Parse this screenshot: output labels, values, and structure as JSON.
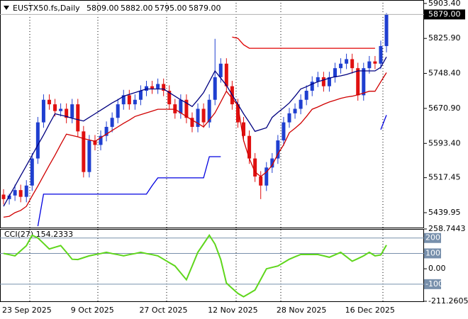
{
  "header": {
    "symbol": "EUSTX50.fs,Daily",
    "ohlc": [
      "5809.00",
      "5882.00",
      "5795.00",
      "5879.00"
    ]
  },
  "chart_data": [
    {
      "type": "candlestick",
      "categories": [
        "23 Sep 2025",
        null,
        null,
        null,
        null,
        null,
        null,
        null,
        null,
        null,
        null,
        null,
        "9 Oct 2025",
        null,
        null,
        null,
        null,
        null,
        null,
        null,
        null,
        null,
        null,
        null,
        "27 Oct 2025",
        null,
        null,
        null,
        null,
        null,
        null,
        null,
        null,
        null,
        null,
        null,
        "12 Nov 2025",
        null,
        null,
        null,
        null,
        null,
        null,
        null,
        null,
        null,
        null,
        null,
        "28 Nov 2025",
        null,
        null,
        null,
        null,
        null,
        null,
        null,
        null,
        null,
        null,
        null,
        "16 Dec 2025",
        null,
        null,
        null,
        null,
        null,
        null,
        null
      ],
      "open": [
        5480,
        5470,
        5478,
        5490,
        5475,
        5500,
        5560,
        5640,
        5690,
        5680,
        5665,
        5670,
        5650,
        5680,
        5620,
        5530,
        5600,
        5590,
        5610,
        5630,
        5650,
        5680,
        5700,
        5680,
        5690,
        5710,
        5720,
        5715,
        5725,
        5710,
        5680,
        5660,
        5690,
        5650,
        5630,
        5670,
        5640,
        5690,
        5740,
        5770,
        5720,
        5680,
        5640,
        5610,
        5560,
        5520,
        5500,
        5540,
        5560,
        5600,
        5640,
        5660,
        5670,
        5690,
        5710,
        5730,
        5740,
        5720,
        5740,
        5760,
        5770,
        5780,
        5760,
        5700,
        5760,
        5775,
        5770,
        5809
      ],
      "high": [
        5492,
        5482,
        5502,
        5502,
        5512,
        5572,
        5652,
        5702,
        5702,
        5692,
        5682,
        5682,
        5692,
        5692,
        5632,
        5612,
        5612,
        5622,
        5642,
        5662,
        5692,
        5712,
        5712,
        5702,
        5722,
        5732,
        5732,
        5737,
        5737,
        5722,
        5692,
        5702,
        5702,
        5662,
        5682,
        5682,
        5702,
        5825,
        5782,
        5782,
        5732,
        5692,
        5652,
        5622,
        5572,
        5532,
        5552,
        5572,
        5612,
        5652,
        5672,
        5682,
        5702,
        5722,
        5742,
        5752,
        5752,
        5752,
        5772,
        5782,
        5792,
        5792,
        5772,
        5772,
        5787,
        5787,
        5821,
        5882
      ],
      "low": [
        5458,
        5458,
        5466,
        5463,
        5463,
        5488,
        5548,
        5628,
        5668,
        5653,
        5653,
        5638,
        5638,
        5608,
        5518,
        5518,
        5578,
        5578,
        5598,
        5618,
        5638,
        5668,
        5668,
        5668,
        5678,
        5698,
        5703,
        5703,
        5698,
        5668,
        5648,
        5648,
        5638,
        5618,
        5618,
        5628,
        5628,
        5678,
        5728,
        5708,
        5668,
        5628,
        5598,
        5548,
        5508,
        5470,
        5488,
        5528,
        5548,
        5588,
        5628,
        5648,
        5658,
        5678,
        5698,
        5718,
        5708,
        5708,
        5728,
        5748,
        5758,
        5748,
        5688,
        5688,
        5748,
        5758,
        5758,
        5795
      ],
      "close": [
        5470,
        5478,
        5490,
        5475,
        5500,
        5560,
        5640,
        5690,
        5680,
        5665,
        5670,
        5650,
        5680,
        5620,
        5530,
        5600,
        5590,
        5610,
        5630,
        5650,
        5680,
        5700,
        5680,
        5690,
        5710,
        5720,
        5715,
        5725,
        5710,
        5680,
        5660,
        5690,
        5650,
        5630,
        5670,
        5640,
        5690,
        5740,
        5770,
        5720,
        5680,
        5640,
        5610,
        5560,
        5520,
        5500,
        5540,
        5560,
        5600,
        5640,
        5660,
        5670,
        5690,
        5710,
        5730,
        5740,
        5720,
        5740,
        5760,
        5770,
        5780,
        5760,
        5700,
        5760,
        5775,
        5770,
        5809,
        5879
      ],
      "up_color": "#1f3fd0",
      "down_color": "#e01010",
      "last_price_label": "5879.00",
      "series": [
        {
          "color": "#000080",
          "values": [
            5454,
            5477,
            5499,
            5522,
            5544,
            5567,
            5590,
            5612,
            5636,
            5659,
            5656,
            5653,
            5649,
            5646,
            5643,
            5651,
            5659,
            5667,
            5675,
            5683,
            5690,
            5698,
            5702,
            5706,
            5710,
            5714,
            5714,
            5714,
            5714,
            5706,
            5698,
            5690,
            5683,
            5675,
            5690,
            5706,
            5730,
            5754,
            5738,
            5722,
            5701,
            5680,
            5659,
            5640,
            5620,
            5624,
            5628,
            5651,
            5662,
            5672,
            5683,
            5698,
            5714,
            5719,
            5725,
            5730,
            5734,
            5738,
            5741,
            5743,
            5746,
            5750,
            5754,
            5754,
            5754,
            5754,
            5762,
            5785
          ]
        },
        {
          "color": "#d00000",
          "values": [
            5430,
            5432,
            5440,
            5445,
            5454,
            5477,
            5499,
            5522,
            5545,
            5567,
            5591,
            5614,
            5611,
            5608,
            5604,
            5601,
            5598,
            5606,
            5614,
            5622,
            5630,
            5638,
            5645,
            5653,
            5657,
            5661,
            5665,
            5669,
            5669,
            5669,
            5669,
            5661,
            5653,
            5645,
            5638,
            5630,
            5645,
            5661,
            5685,
            5709,
            5693,
            5677,
            5600,
            5560,
            5530,
            5520,
            5530,
            5545,
            5570,
            5590,
            5617,
            5627,
            5638,
            5653,
            5669,
            5674,
            5680,
            5685,
            5689,
            5693,
            5696,
            5698,
            5701,
            5705,
            5709,
            5709,
            5730,
            5750
          ]
        },
        {
          "color": "#0000e0",
          "values": [
            null,
            null,
            null,
            null,
            null,
            null,
            5410,
            5481,
            5481,
            5481,
            5481,
            5481,
            5481,
            5481,
            5481,
            5481,
            5481,
            5481,
            5481,
            5481,
            5481,
            5481,
            5481,
            5481,
            5481,
            5481,
            5500,
            5517,
            5517,
            5517,
            5517,
            5517,
            5517,
            5517,
            5517,
            5517,
            5564,
            5564,
            5564,
            null,
            null,
            null,
            null,
            null,
            null,
            null,
            null,
            null,
            null,
            null,
            null,
            null,
            null,
            null,
            null,
            null,
            null,
            null,
            null,
            null,
            null,
            null,
            null,
            null,
            null,
            null,
            5624,
            5656
          ]
        },
        {
          "color": "#e00000",
          "values": [
            null,
            null,
            null,
            null,
            null,
            null,
            null,
            null,
            null,
            null,
            null,
            null,
            null,
            null,
            null,
            null,
            null,
            null,
            null,
            null,
            null,
            null,
            null,
            null,
            null,
            null,
            null,
            null,
            null,
            null,
            null,
            null,
            null,
            null,
            null,
            null,
            null,
            null,
            null,
            null,
            5829,
            5826,
            5812,
            5804,
            5804,
            5804,
            5804,
            5804,
            5804,
            5804,
            5804,
            5804,
            5804,
            5804,
            5804,
            5804,
            5804,
            5804,
            5804,
            5804,
            5804,
            5804,
            5804,
            5804,
            5804,
            5804,
            null,
            null
          ]
        }
      ],
      "ylim": [
        5407,
        5911
      ],
      "yticks": [
        {
          "value": 5903.4,
          "label": "5903.40"
        },
        {
          "value": 5825.9,
          "label": "5825.90"
        },
        {
          "value": 5748.4,
          "label": "5748.40"
        },
        {
          "value": 5670.9,
          "label": "5670.90"
        },
        {
          "value": 5593.4,
          "label": "5593.40"
        },
        5517.45,
        5439.95
      ]
    },
    {
      "type": "line",
      "label": "CCI(27) 154.2333",
      "series": [
        {
          "color": "#5fd61c",
          "values": [
            100,
            92,
            84,
            117,
            150,
            218,
            200,
            165,
            129,
            140,
            151,
            107,
            62,
            60,
            72,
            84,
            92,
            99,
            107,
            99,
            92,
            84,
            92,
            99,
            107,
            99,
            92,
            84,
            62,
            40,
            18,
            -27,
            -71,
            18,
            107,
            162,
            218,
            160,
            60,
            -93,
            -127,
            -160,
            -182,
            -160,
            -138,
            -69,
            0,
            9,
            18,
            40,
            62,
            78,
            93,
            93,
            93,
            93,
            84,
            75,
            91,
            107,
            78,
            49,
            66,
            84,
            107,
            84,
            90,
            154.2333
          ]
        }
      ],
      "ylim": [
        -211.2605,
        258.7443
      ],
      "yticks": [
        258.7443,
        {
          "value": 0,
          "label": "0.00"
        },
        -211.2605
      ],
      "levels": [
        200,
        100,
        -100
      ],
      "level_color": "#7890ac"
    }
  ]
}
